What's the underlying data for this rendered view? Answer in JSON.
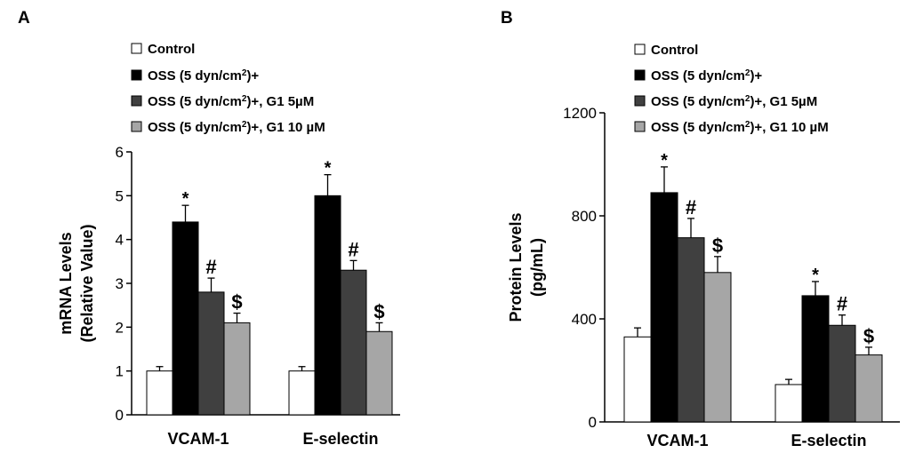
{
  "chart_data": [
    {
      "panel": "A",
      "type": "bar",
      "ylabel_line1": "mRNA Levels",
      "ylabel_line2": "(Relative Value)",
      "ylim": [
        0,
        6
      ],
      "yticks": [
        0,
        1,
        2,
        3,
        4,
        5,
        6
      ],
      "categories": [
        "VCAM-1",
        "E-selectin"
      ],
      "series": [
        {
          "name": "Control",
          "values": [
            1.0,
            1.0
          ],
          "errors": [
            0.1,
            0.1
          ],
          "marks": [
            "",
            ""
          ]
        },
        {
          "name": "OSS (5 dyn/cm²)+",
          "values": [
            4.4,
            5.0
          ],
          "errors": [
            0.38,
            0.48
          ],
          "marks": [
            "*",
            "*"
          ]
        },
        {
          "name": "OSS (5 dyn/cm²)+, G1 5µM",
          "values": [
            2.8,
            3.3
          ],
          "errors": [
            0.32,
            0.22
          ],
          "marks": [
            "#",
            "#"
          ]
        },
        {
          "name": "OSS (5 dyn/cm²)+, G1 10 µM",
          "values": [
            2.1,
            1.9
          ],
          "errors": [
            0.22,
            0.2
          ],
          "marks": [
            "$",
            "$"
          ]
        }
      ]
    },
    {
      "panel": "B",
      "type": "bar",
      "ylabel_line1": "Protein Levels",
      "ylabel_line2": "(pg/mL)",
      "ylim": [
        0,
        1200
      ],
      "yticks": [
        0,
        400,
        800,
        1200
      ],
      "categories": [
        "VCAM-1",
        "E-selectin"
      ],
      "series": [
        {
          "name": "Control",
          "values": [
            330,
            145
          ],
          "errors": [
            35,
            20
          ],
          "marks": [
            "",
            ""
          ]
        },
        {
          "name": "OSS (5 dyn/cm²)+",
          "values": [
            890,
            490
          ],
          "errors": [
            100,
            55
          ],
          "marks": [
            "*",
            "*"
          ]
        },
        {
          "name": "OSS (5 dyn/cm²)+, G1 5µM",
          "values": [
            715,
            375
          ],
          "errors": [
            75,
            40
          ],
          "marks": [
            "#",
            "#"
          ]
        },
        {
          "name": "OSS (5 dyn/cm²)+, G1 10 µM",
          "values": [
            580,
            260
          ],
          "errors": [
            62,
            30
          ],
          "marks": [
            "$",
            "$"
          ]
        }
      ]
    }
  ],
  "colors": [
    "#ffffff",
    "#000000",
    "#404040",
    "#a6a6a6"
  ]
}
